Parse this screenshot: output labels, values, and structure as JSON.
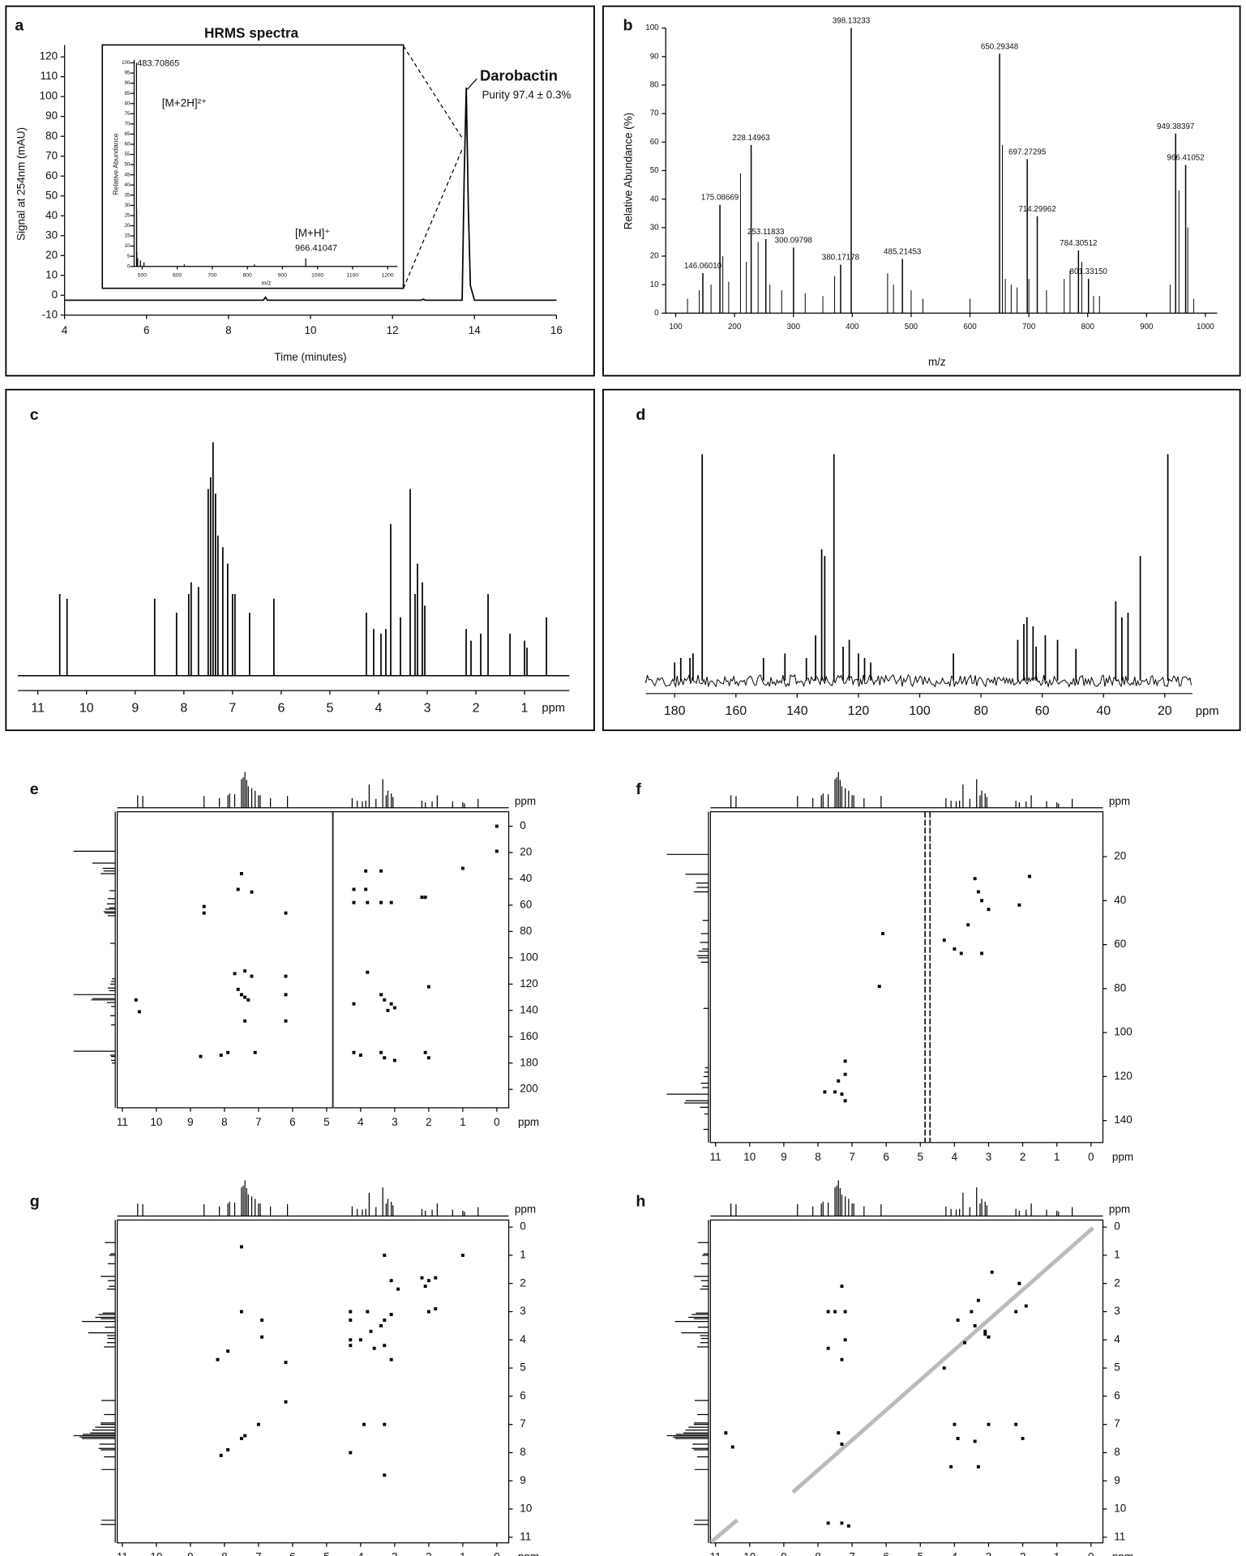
{
  "chart_data": [
    {
      "panel": "a",
      "type": "line",
      "x": [
        4,
        8.85,
        8.9,
        8.95,
        12.7,
        12.75,
        12.8,
        13.7,
        13.75,
        13.8,
        13.85,
        13.9,
        14.0,
        16
      ],
      "values": [
        -2.5,
        -2.5,
        -1,
        -2.5,
        -2.5,
        -2,
        -2.5,
        -2.5,
        60,
        104.5,
        45,
        5,
        -2.5,
        -2.5
      ],
      "xlim": [
        4,
        16
      ],
      "xticks": [
        4,
        6,
        8,
        10,
        12,
        14,
        16
      ],
      "ylim": [
        -10,
        120
      ],
      "yticks": [
        -10,
        0,
        10,
        20,
        30,
        40,
        50,
        60,
        70,
        80,
        90,
        100,
        110,
        120
      ],
      "xlabel": "Time (minutes)",
      "ylabel": "Signal at 254nm (mAU)",
      "annotations": [
        "Darobactin",
        "Purity 97.4 ± 0.3%"
      ],
      "inset": {
        "type": "bar",
        "title": "HRMS spectra",
        "x": [
          483.70865,
          484.2,
          484.7,
          487,
          495,
          505,
          620,
          820,
          966.41047
        ],
        "values": [
          100,
          28,
          7,
          4,
          3,
          2,
          1,
          1,
          4
        ],
        "xlim": [
          477,
          1228
        ],
        "xticks": [
          500,
          600,
          700,
          800,
          900,
          1000,
          1100,
          1200
        ],
        "ylim": [
          0,
          100
        ],
        "yticks": [
          0,
          5,
          10,
          15,
          20,
          25,
          30,
          35,
          40,
          45,
          50,
          55,
          60,
          65,
          70,
          75,
          80,
          85,
          90,
          95,
          100
        ],
        "xlabel": "m/z",
        "ylabel": "Relative Abundance",
        "annotations": [
          "[M+2H]²⁺",
          "[M+H]⁺"
        ]
      }
    },
    {
      "panel": "b",
      "type": "bar",
      "xlim": [
        83,
        1020
      ],
      "xticks": [
        100,
        200,
        300,
        400,
        500,
        600,
        700,
        800,
        900,
        1000
      ],
      "ylim": [
        0,
        100
      ],
      "yticks": [
        0,
        10,
        20,
        30,
        40,
        50,
        60,
        70,
        80,
        90,
        100
      ],
      "xlabel": "m/z",
      "ylabel": "Relative Abundance (%)",
      "labeled_peaks": {
        "x": [
          146.0601,
          175.08669,
          228.14963,
          253.11833,
          300.09798,
          380.17178,
          398.13233,
          485.21453,
          650.29348,
          697.27295,
          714.29962,
          784.30512,
          801.3315,
          949.38397,
          966.41052
        ],
        "values": [
          14,
          38,
          59,
          26,
          23,
          17,
          100,
          19,
          91,
          54,
          34,
          22,
          12,
          63,
          52
        ],
        "labels": [
          "146.06010",
          "175.08669",
          "228.14963",
          "253.11833",
          "300.09798",
          "380.17178",
          "398.13233",
          "485.21453",
          "650.29348",
          "697.27295",
          "714.29962",
          "784.30512",
          "801.33150",
          "949.38397",
          "966.41052"
        ]
      },
      "peaks": {
        "x": [
          120,
          140,
          160,
          180,
          190,
          210,
          220,
          240,
          260,
          280,
          320,
          350,
          370,
          460,
          470,
          500,
          520,
          600,
          655,
          660,
          670,
          680,
          700,
          730,
          760,
          770,
          790,
          810,
          820,
          940,
          955,
          970,
          980
        ],
        "values": [
          5,
          8,
          10,
          20,
          11,
          49,
          18,
          25,
          10,
          8,
          7,
          6,
          13,
          14,
          10,
          8,
          5,
          5,
          59,
          12,
          10,
          9,
          12,
          8,
          12,
          15,
          18,
          6,
          6,
          10,
          43,
          30,
          5
        ]
      }
    },
    {
      "panel": "c",
      "type": "spectrum",
      "xlim": [
        11.41,
        0.08
      ],
      "xticks": [
        11,
        10,
        9,
        8,
        7,
        6,
        5,
        4,
        3,
        2,
        1
      ],
      "ylim": [
        0,
        100
      ],
      "xlabel": "ppm",
      "x": [
        10.55,
        10.4,
        8.6,
        8.15,
        7.9,
        7.85,
        7.7,
        7.5,
        7.45,
        7.4,
        7.35,
        7.3,
        7.2,
        7.1,
        7.0,
        6.95,
        6.65,
        6.15,
        4.25,
        4.1,
        3.95,
        3.85,
        3.75,
        3.55,
        3.35,
        3.25,
        3.2,
        3.1,
        3.05,
        2.2,
        2.1,
        1.9,
        1.75,
        1.3,
        1.0,
        0.95,
        0.55
      ],
      "values": [
        35,
        33,
        33,
        27,
        35,
        40,
        38,
        80,
        85,
        100,
        78,
        60,
        55,
        48,
        35,
        35,
        27,
        33,
        27,
        20,
        18,
        20,
        65,
        25,
        80,
        35,
        48,
        40,
        30,
        20,
        15,
        18,
        35,
        18,
        15,
        12,
        25
      ]
    },
    {
      "panel": "d",
      "type": "spectrum",
      "xlim": [
        189.4,
        11
      ],
      "xticks": [
        180,
        160,
        140,
        120,
        100,
        80,
        60,
        40,
        20
      ],
      "ylim": [
        0,
        100
      ],
      "xlabel": "ppm",
      "x": [
        180,
        178,
        175,
        174,
        171,
        151,
        144,
        137,
        134,
        132,
        131,
        128,
        125,
        123,
        120,
        118,
        116,
        89,
        68,
        66,
        65,
        63,
        62,
        59,
        55,
        49,
        36,
        34,
        32,
        28,
        19
      ],
      "values": [
        8,
        10,
        10,
        12,
        100,
        10,
        12,
        10,
        20,
        58,
        55,
        100,
        15,
        18,
        12,
        10,
        8,
        12,
        18,
        25,
        28,
        24,
        15,
        20,
        18,
        14,
        35,
        28,
        30,
        55,
        100
      ]
    },
    {
      "panel": "e",
      "type": "scatter",
      "xlim": [
        11.15,
        -0.35
      ],
      "xticks": [
        11,
        10,
        9,
        8,
        7,
        6,
        5,
        4,
        3,
        2,
        1,
        0
      ],
      "ylim": [
        -11,
        214
      ],
      "yticks": [
        0,
        20,
        40,
        60,
        80,
        100,
        120,
        140,
        160,
        180,
        200
      ],
      "xlabel": "ppm",
      "projection_label": "ppm",
      "projection_top": "c",
      "projection_left": "d",
      "x": [
        0,
        0,
        7.5,
        7.6,
        7.2,
        8.6,
        8.6,
        6.2,
        3.85,
        3.4,
        4.2,
        3.85,
        4.2,
        3.8,
        3.4,
        3.1,
        2.2,
        2.1,
        7.7,
        7.4,
        7.2,
        6.2,
        7.6,
        7.5,
        7.4,
        7.3,
        6.2,
        10.6,
        10.5,
        7.4,
        6.2,
        3.8,
        4.2,
        3.4,
        3.3,
        3.1,
        3.0,
        2.0,
        3.2,
        8.7,
        8.1,
        7.9,
        7.1,
        4.2,
        4.0,
        3.4,
        3.3,
        3.0,
        2.1,
        2.0,
        1.0
      ],
      "values": [
        0,
        19,
        36,
        48,
        50,
        61,
        66,
        66,
        34,
        34,
        48,
        48,
        58,
        58,
        58,
        58,
        54,
        54,
        112,
        110,
        114,
        114,
        124,
        128,
        130,
        132,
        128,
        132,
        141,
        148,
        148,
        111,
        135,
        128,
        132,
        135,
        138,
        122,
        140,
        175,
        174,
        172,
        172,
        172,
        174,
        172,
        176,
        178,
        172,
        176,
        32
      ]
    },
    {
      "panel": "f",
      "type": "scatter",
      "xlim": [
        11.15,
        -0.35
      ],
      "xticks": [
        11,
        10,
        9,
        8,
        7,
        6,
        5,
        4,
        3,
        2,
        1,
        0
      ],
      "ylim": [
        -0.4,
        150
      ],
      "yticks": [
        20,
        40,
        60,
        80,
        100,
        120,
        140
      ],
      "xlabel": "ppm",
      "projection_label": "ppm",
      "projection_top": "c",
      "projection_left": "d",
      "x": [
        3.4,
        3.3,
        3.2,
        2.1,
        1.8,
        3.6,
        3.0,
        4.0,
        4.3,
        3.8,
        3.2,
        6.1,
        6.2,
        7.2,
        7.2,
        7.4,
        7.8,
        7.3,
        7.2,
        7.5
      ],
      "values": [
        30,
        36,
        40,
        42,
        29,
        51,
        44,
        62,
        58,
        64,
        64,
        55,
        79,
        113,
        119,
        122,
        127,
        128,
        131,
        127
      ]
    },
    {
      "panel": "g",
      "type": "scatter",
      "xlim": [
        11.15,
        -0.35
      ],
      "xticks": [
        11,
        10,
        9,
        8,
        7,
        6,
        5,
        4,
        3,
        2,
        1,
        0
      ],
      "ylim": [
        -0.25,
        11.2
      ],
      "yticks": [
        0,
        1,
        2,
        3,
        4,
        5,
        6,
        7,
        8,
        9,
        10,
        11
      ],
      "xlabel": "ppm",
      "projection_label": "ppm",
      "projection_top": "c",
      "projection_left": "c",
      "x": [
        2.1,
        1.8,
        2.0,
        3.1,
        3.3,
        3.4,
        3.7,
        4.0,
        4.3,
        7.4,
        7.0,
        7.5,
        8.1,
        7.9,
        6.2,
        8.2,
        7.9,
        7.5,
        6.9,
        6.9,
        6.2,
        4.3,
        4.3,
        4.3,
        3.8,
        3.3,
        3.1,
        2.9,
        2.0,
        1.8,
        2.2,
        3.3,
        3.9,
        3.3,
        4.3,
        3.3,
        7.5,
        3.1,
        3.6,
        1.0
      ],
      "values": [
        2.1,
        1.8,
        1.9,
        3.1,
        3.3,
        3.5,
        3.7,
        4.0,
        4.2,
        7.4,
        7.0,
        7.5,
        8.1,
        7.9,
        6.2,
        4.7,
        4.4,
        3.0,
        3.3,
        3.9,
        4.8,
        3.0,
        3.3,
        4.0,
        3.0,
        4.2,
        4.7,
        2.2,
        3.0,
        2.9,
        1.8,
        1.0,
        7.0,
        7.0,
        8.0,
        8.8,
        0.7,
        1.9,
        4.3,
        1.0
      ]
    },
    {
      "panel": "h",
      "type": "scatter",
      "xlim": [
        11.15,
        -0.35
      ],
      "xticks": [
        11,
        10,
        9,
        8,
        7,
        6,
        5,
        4,
        3,
        2,
        1,
        0
      ],
      "ylim": [
        -0.25,
        11.2
      ],
      "yticks": [
        0,
        1,
        2,
        3,
        4,
        5,
        6,
        7,
        8,
        9,
        10,
        11
      ],
      "xlabel": "ppm",
      "projection_label": "ppm",
      "projection_top": "c",
      "projection_left": "c",
      "x": [
        7.7,
        7.3,
        7.5,
        7.2,
        7.2,
        7.7,
        7.3,
        7.4,
        7.3,
        3.9,
        3.5,
        3.3,
        3.1,
        2.9,
        2.1,
        2.2,
        4.0,
        3.9,
        3.0,
        3.4,
        3.3,
        4.1,
        2.0,
        2.2,
        1.9,
        7.7,
        7.3,
        7.1,
        10.7,
        10.5,
        3.4,
        3.1,
        4.3,
        3.7,
        3.0
      ],
      "values": [
        4.3,
        4.7,
        3.0,
        3.0,
        4.0,
        3.0,
        2.1,
        7.3,
        7.7,
        3.3,
        3.0,
        2.6,
        3.8,
        1.6,
        2.0,
        3.0,
        7.0,
        7.5,
        7.0,
        7.6,
        8.5,
        8.5,
        7.5,
        7.0,
        2.8,
        10.5,
        10.5,
        10.6,
        7.3,
        7.8,
        3.5,
        3.7,
        5.0,
        4.1,
        3.9
      ]
    }
  ]
}
